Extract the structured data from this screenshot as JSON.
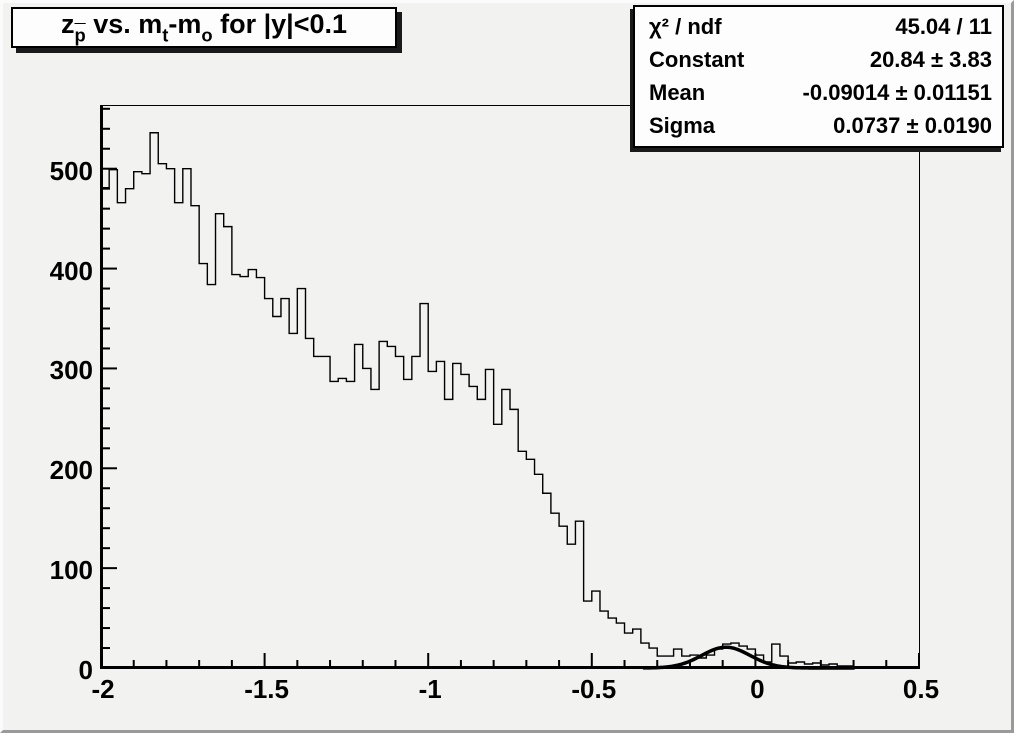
{
  "title": {
    "lead": "z",
    "lead_sub": "p",
    "mid1": " vs. m",
    "mid1_sub": "t",
    "mid2": "-m",
    "mid2_sub": "o",
    "tail": " for |y|<0.1"
  },
  "stats_box": {
    "rows": [
      {
        "label": "χ² / ndf",
        "value": "45.04 / 11"
      },
      {
        "label": "Constant",
        "value": "20.84 ± 3.83"
      },
      {
        "label": "Mean",
        "value": "-0.09014 ± 0.01151"
      },
      {
        "label": "Sigma",
        "value": "0.0737 ± 0.0190"
      }
    ]
  },
  "colors": {
    "canvas_bg": "#f2f2f0",
    "pave_bg": "#fdfdfd",
    "line": "#000000"
  },
  "chart_data": {
    "type": "line",
    "subtype": "step-histogram",
    "title": "z_pbar vs. m_t-m_o for |y|<0.1",
    "xlabel": "",
    "ylabel": "",
    "xlim": [
      -2,
      0.5
    ],
    "ylim": [
      0,
      562.8
    ],
    "grid": false,
    "legend": "none",
    "bin_start": -2,
    "bin_width": 0.025,
    "values": [
      481,
      499,
      466,
      480,
      497,
      495,
      536,
      505,
      500,
      466,
      500,
      463,
      405,
      384,
      455,
      442,
      394,
      392,
      399,
      391,
      370,
      352,
      370,
      335,
      380,
      330,
      312,
      312,
      287,
      290,
      287,
      324,
      300,
      279,
      327,
      322,
      312,
      289,
      312,
      365,
      297,
      307,
      269,
      305,
      294,
      282,
      269,
      299,
      244,
      279,
      259,
      217,
      209,
      194,
      175,
      155,
      142,
      124,
      147,
      67,
      77,
      57,
      50,
      45,
      35,
      39,
      25,
      20,
      12,
      12,
      19,
      12,
      13,
      10,
      13,
      19,
      24,
      25,
      22,
      19,
      13,
      6,
      24,
      12,
      5,
      6,
      4,
      5,
      3,
      4,
      2,
      2,
      1,
      0,
      0,
      0,
      0,
      0,
      0,
      0
    ],
    "fit": {
      "type": "gaussian",
      "constant": 20.84,
      "mean": -0.09014,
      "sigma": 0.0737,
      "range": [
        -0.34,
        0.3
      ]
    },
    "x_axis": {
      "ticks": [
        -2,
        -1.5,
        -1,
        -0.5,
        0,
        0.5
      ],
      "tick_labels": [
        "-2",
        "-1.5",
        "-1",
        "-0.5",
        "0",
        "0.5"
      ],
      "minor_step": 0.1
    },
    "y_axis": {
      "ticks": [
        0,
        100,
        200,
        300,
        400,
        500
      ],
      "tick_labels": [
        "0",
        "100",
        "200",
        "300",
        "400",
        "500"
      ],
      "minor_step": 20
    }
  }
}
